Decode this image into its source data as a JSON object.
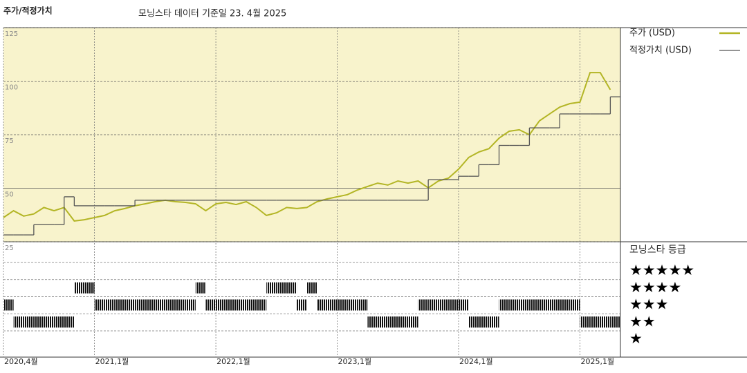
{
  "chart_data": {
    "type": "line",
    "title": "주가/적정가치",
    "subtitle": "모닝스타 데이터 기준일 23. 4월 2025",
    "x": [
      "2020-04",
      "2020-05",
      "2020-06",
      "2020-07",
      "2020-08",
      "2020-09",
      "2020-10",
      "2020-11",
      "2020-12",
      "2021-01",
      "2021-02",
      "2021-03",
      "2021-04",
      "2021-05",
      "2021-06",
      "2021-07",
      "2021-08",
      "2021-09",
      "2021-10",
      "2021-11",
      "2021-12",
      "2022-01",
      "2022-02",
      "2022-03",
      "2022-04",
      "2022-05",
      "2022-06",
      "2022-07",
      "2022-08",
      "2022-09",
      "2022-10",
      "2022-11",
      "2022-12",
      "2023-01",
      "2023-02",
      "2023-03",
      "2023-04",
      "2023-05",
      "2023-06",
      "2023-07",
      "2023-08",
      "2023-09",
      "2023-10",
      "2023-11",
      "2023-12",
      "2024-01",
      "2024-02",
      "2024-03",
      "2024-04",
      "2024-05",
      "2024-06",
      "2024-07",
      "2024-08",
      "2024-09",
      "2024-10",
      "2024-11",
      "2024-12",
      "2025-01",
      "2025-02",
      "2025-03",
      "2025-04"
    ],
    "series": [
      {
        "name": "주가 (USD)",
        "color": "#b3b525",
        "values": [
          36.3,
          39.5,
          37,
          38,
          41,
          39.5,
          41,
          34.7,
          35.3,
          36.3,
          37.3,
          39.5,
          40.5,
          41.8,
          42.7,
          43.7,
          44.4,
          43.7,
          43.4,
          42.7,
          39.5,
          42.7,
          43.4,
          42.4,
          43.7,
          41,
          37.3,
          38.5,
          41,
          40.5,
          41,
          43.7,
          45,
          46,
          47,
          49.2,
          50.8,
          52.4,
          51.5,
          53.4,
          52.4,
          53.4,
          50.2,
          53.4,
          54.7,
          58.9,
          64.4,
          66.9,
          68.5,
          73.4,
          76.6,
          77.3,
          75,
          81.5,
          84.7,
          87.9,
          89.5,
          90.2,
          104,
          104,
          96
        ]
      },
      {
        "name": "적정가치 (USD)",
        "color": "#555555",
        "step": true,
        "values": [
          28.2,
          28.2,
          28.2,
          33,
          33,
          33,
          46,
          41.8,
          41.8,
          41.8,
          41.8,
          41.8,
          41.8,
          44.4,
          44.4,
          44.4,
          44.4,
          44.4,
          44.4,
          44.4,
          44.4,
          44.4,
          44.4,
          44.4,
          44.4,
          44.4,
          44.4,
          44.4,
          44.4,
          44.4,
          44.4,
          44.4,
          44.4,
          44.4,
          44.4,
          44.4,
          44.4,
          44.4,
          44.4,
          44.4,
          44.4,
          44.4,
          54,
          54,
          54,
          55.6,
          55.6,
          61,
          61,
          70,
          70,
          70,
          78.2,
          78.2,
          78.2,
          84.7,
          84.7,
          84.7,
          84.7,
          84.7,
          92.7
        ]
      }
    ],
    "ratings": {
      "title": "모닝스타 등급",
      "labels": [
        "★★★★★",
        "★★★★",
        "★★★",
        "★★",
        "★"
      ],
      "values": [
        3,
        2,
        2,
        2,
        2,
        2,
        2,
        4,
        4,
        3,
        3,
        3,
        3,
        3,
        3,
        3,
        3,
        3,
        3,
        4,
        3,
        3,
        3,
        3,
        3,
        3,
        4,
        4,
        4,
        3,
        4,
        3,
        3,
        3,
        3,
        3,
        2,
        2,
        2,
        2,
        2,
        3,
        3,
        3,
        3,
        3,
        2,
        2,
        2,
        3,
        3,
        3,
        3,
        3,
        3,
        3,
        3,
        2,
        2,
        2,
        2
      ]
    },
    "xlim": [
      "2020-04",
      "2025-05"
    ],
    "xticks": [
      {
        "value": "2020-04",
        "label": "2020,4월"
      },
      {
        "value": "2021-01",
        "label": "2021,1월"
      },
      {
        "value": "2022-01",
        "label": "2022,1월"
      },
      {
        "value": "2023-01",
        "label": "2023,1월"
      },
      {
        "value": "2024-01",
        "label": "2024,1월"
      },
      {
        "value": "2025-01",
        "label": "2025,1월"
      }
    ],
    "ylim": [
      25,
      125
    ],
    "yticks": [
      25,
      50,
      75,
      100,
      125
    ],
    "grid": true,
    "background": "#f8f3cc"
  }
}
